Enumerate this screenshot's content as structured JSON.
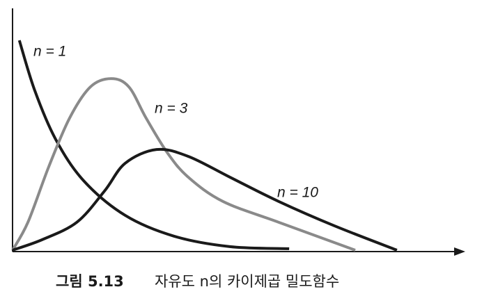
{
  "chart_data": {
    "type": "line",
    "caption_label": "그림 5.13",
    "caption": "자유도 n의 카이제곱 밀도함수",
    "xlim": [
      0,
      100
    ],
    "ylim": [
      0,
      100
    ],
    "series": [
      {
        "name": "n = 1",
        "color": "#1a1a1a",
        "x": [
          1.5,
          4.9,
          9.5,
          15.7,
          24.9,
          35.7,
          48,
          61.1
        ],
        "y": [
          89.4,
          68.2,
          47.6,
          30,
          15.3,
          6.5,
          2.1,
          1.2
        ]
      },
      {
        "name": "n = 3",
        "color": "#8a8a8a",
        "x": [
          0,
          3.4,
          8,
          12.6,
          17.2,
          21.8,
          25.7,
          29.5,
          34.2,
          38.8,
          46.5,
          58.8,
          75.7
        ],
        "y": [
          0.6,
          12.4,
          35.9,
          56.5,
          69.7,
          73.2,
          69.7,
          56.5,
          41.8,
          31.5,
          21.2,
          12.4,
          0.6
        ]
      },
      {
        "name": "n = 10",
        "color": "#1a1a1a",
        "x": [
          0,
          6.5,
          14.2,
          20.3,
          24.9,
          31.8,
          38.8,
          48,
          58.8,
          71.1,
          84.9
        ],
        "y": [
          0.6,
          5,
          12.4,
          25.6,
          37.4,
          43.2,
          40.3,
          31.5,
          21.2,
          10.9,
          0.6
        ]
      }
    ]
  }
}
